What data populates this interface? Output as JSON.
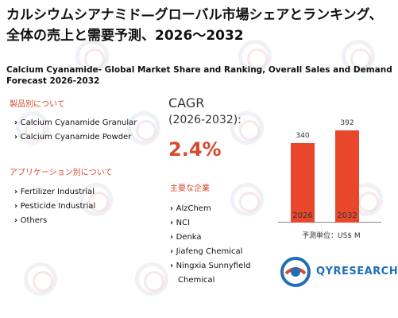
{
  "header": {
    "title": "カルシウムシアナミド—グローバル市場シェアとランキング、全体の売上と需要予測、2026〜2032",
    "subtitle": "Calcium Cyanamide- Global Market Share and Ranking, Overall Sales and Demand Forecast 2026-2032"
  },
  "products": {
    "heading": "製品別について",
    "items": [
      "Calcium Cyanamide Granular",
      "Calcium Cyanamide Powder"
    ]
  },
  "applications": {
    "heading": "アプリケーション別について",
    "items": [
      "Fertilizer Industrial",
      "Pesticide Industrial",
      "Others"
    ]
  },
  "cagr": {
    "label": "CAGR",
    "period": "(2026-2032):",
    "value": "2.4%"
  },
  "companies": {
    "heading": "主要な企業",
    "items": [
      "AlzChem",
      "NCI",
      "Denka",
      "Jiafeng Chemical",
      "Ningxia Sunnyfield Chemical"
    ]
  },
  "chart_data": {
    "type": "bar",
    "categories": [
      "2026",
      "2032"
    ],
    "values": [
      340,
      392
    ],
    "value_labels": [
      "340",
      "392"
    ],
    "unit_label": "予測単位：US$ M",
    "color": "#e8472c",
    "ylim": [
      0,
      400
    ]
  },
  "logo": {
    "text": "QYRESEARCH",
    "colors": {
      "primary": "#1f6fb8",
      "accent": "#d64a2e"
    }
  }
}
